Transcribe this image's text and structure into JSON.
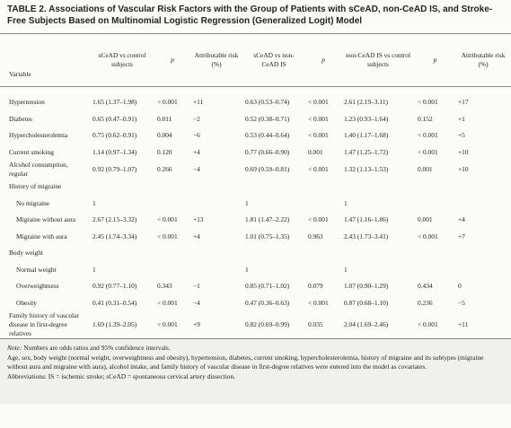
{
  "title": "TABLE 2. Associations of Vascular Risk Factors with the Group of Patients with sCeAD, non-CeAD IS, and Stroke-Free Subjects Based on Multinomial Logistic Regression (Generalized Logit) Model",
  "table": {
    "header": [
      "Variable",
      "sCeAD vs control subjects",
      "p",
      "Attributable risk (%)",
      "sCeAD vs non-CeAD IS",
      "p",
      "non-CeAD IS vs control subjects",
      "p",
      "Attributable risk (%)"
    ],
    "body": [
      {
        "cells": [
          "Hypertension",
          "1.65 (1.37–1.98)",
          "< 0.001",
          "+11",
          "0.63 (0.53–0.74)",
          "< 0.001",
          "2.61 (2.19–3.11)",
          "< 0.001",
          "+17"
        ]
      },
      {
        "cells": [
          "Diabetes",
          "0.65 (0.47–0.91)",
          "0.011",
          "−2",
          "0.52 (0.38–0.71)",
          "< 0.001",
          "1.23 (0.93–1.64)",
          "0.152",
          "+1"
        ]
      },
      {
        "cells": [
          "Hypercholesterolemia",
          "0.75 (0.62–0.91)",
          "0.004",
          "−6",
          "0.53 (0.44–0.64)",
          "< 0.001",
          "1.40 (1.17–1.68)",
          "< 0.001",
          "+5"
        ]
      },
      {
        "cells": [
          "Current smoking",
          "1.14 (0.97–1.34)",
          "0.120",
          "+4",
          "0.77 (0.66–0.90)",
          "0.001",
          "1.47 (1.25–1.72)",
          "< 0.001",
          "+10"
        ]
      },
      {
        "cells": [
          "Alcohol consumption, regular",
          "0.92 (0.79–1.07)",
          "0.266",
          "−4",
          "0.69 (0.59–0.81)",
          "< 0.001",
          "1.32 (1.13–1.53)",
          "0.001",
          "+10"
        ]
      },
      {
        "group": "History of migraine",
        "rows": [
          {
            "cells": [
              "No migraine",
              "1",
              null,
              null,
              "1",
              null,
              "1",
              null,
              null
            ]
          },
          {
            "cells": [
              "Migraine without aura",
              "2.67 (2.15–3.32)",
              "< 0.001",
              "+13",
              "1.81 (1.47–2.22)",
              "< 0.001",
              "1.47 (1.16–1.86)",
              "0.001",
              "+4"
            ]
          },
          {
            "cells": [
              "Migraine with aura",
              "2.45 (1.74–3.34)",
              "< 0.001",
              "+4",
              "1.01 (0.75–1.35)",
              "0.963",
              "2.43 (1.73–3.41)",
              "< 0.001",
              "+7"
            ]
          }
        ]
      },
      {
        "group": "Body weight",
        "rows": [
          {
            "cells": [
              "Normal weight",
              "1",
              null,
              null,
              "1",
              null,
              "1",
              null,
              null
            ]
          },
          {
            "cells": [
              "Overweightness",
              "0.92 (0.77–1.10)",
              "0.343",
              "−1",
              "0.85 (0.71–1.02)",
              "0.079",
              "1.07 (0.90–1.29)",
              "0.434",
              "0"
            ]
          },
          {
            "cells": [
              "Obesity",
              "0.41 (0.31–0.54)",
              "< 0.001",
              "−4",
              "0.47 (0.36–0.63)",
              "< 0.001",
              "0.87 (0.68–1.10)",
              "0.236",
              "−5"
            ]
          }
        ]
      },
      {
        "cells": [
          "Family history of vascular disease in first-degree relatives",
          "1.69 (1.39–2.05)",
          "< 0.001",
          "+9",
          "0.82 (0.69–0.99)",
          "0.035",
          "2.04 (1.69–2.46)",
          "< 0.001",
          "+11"
        ]
      }
    ]
  },
  "notes": {
    "label": "Note:",
    "text": "Numbers are odds ratios and 95% confidence intervals.",
    "covariates": "Age, sex, body weight (normal weight, overweightness and obesity), hypertension, diabetes, current smoking, hypercholesterolemia, history of migraine and its subtypes (migraine without aura and migraine with aura), alcohol intake, and family history of vascular disease in first-degree relatives were entered into the model as covariates.",
    "abbreviations": "Abbreviations: IS = ischemic stroke; sCeAD = spontaneous cervical artery dissection."
  }
}
